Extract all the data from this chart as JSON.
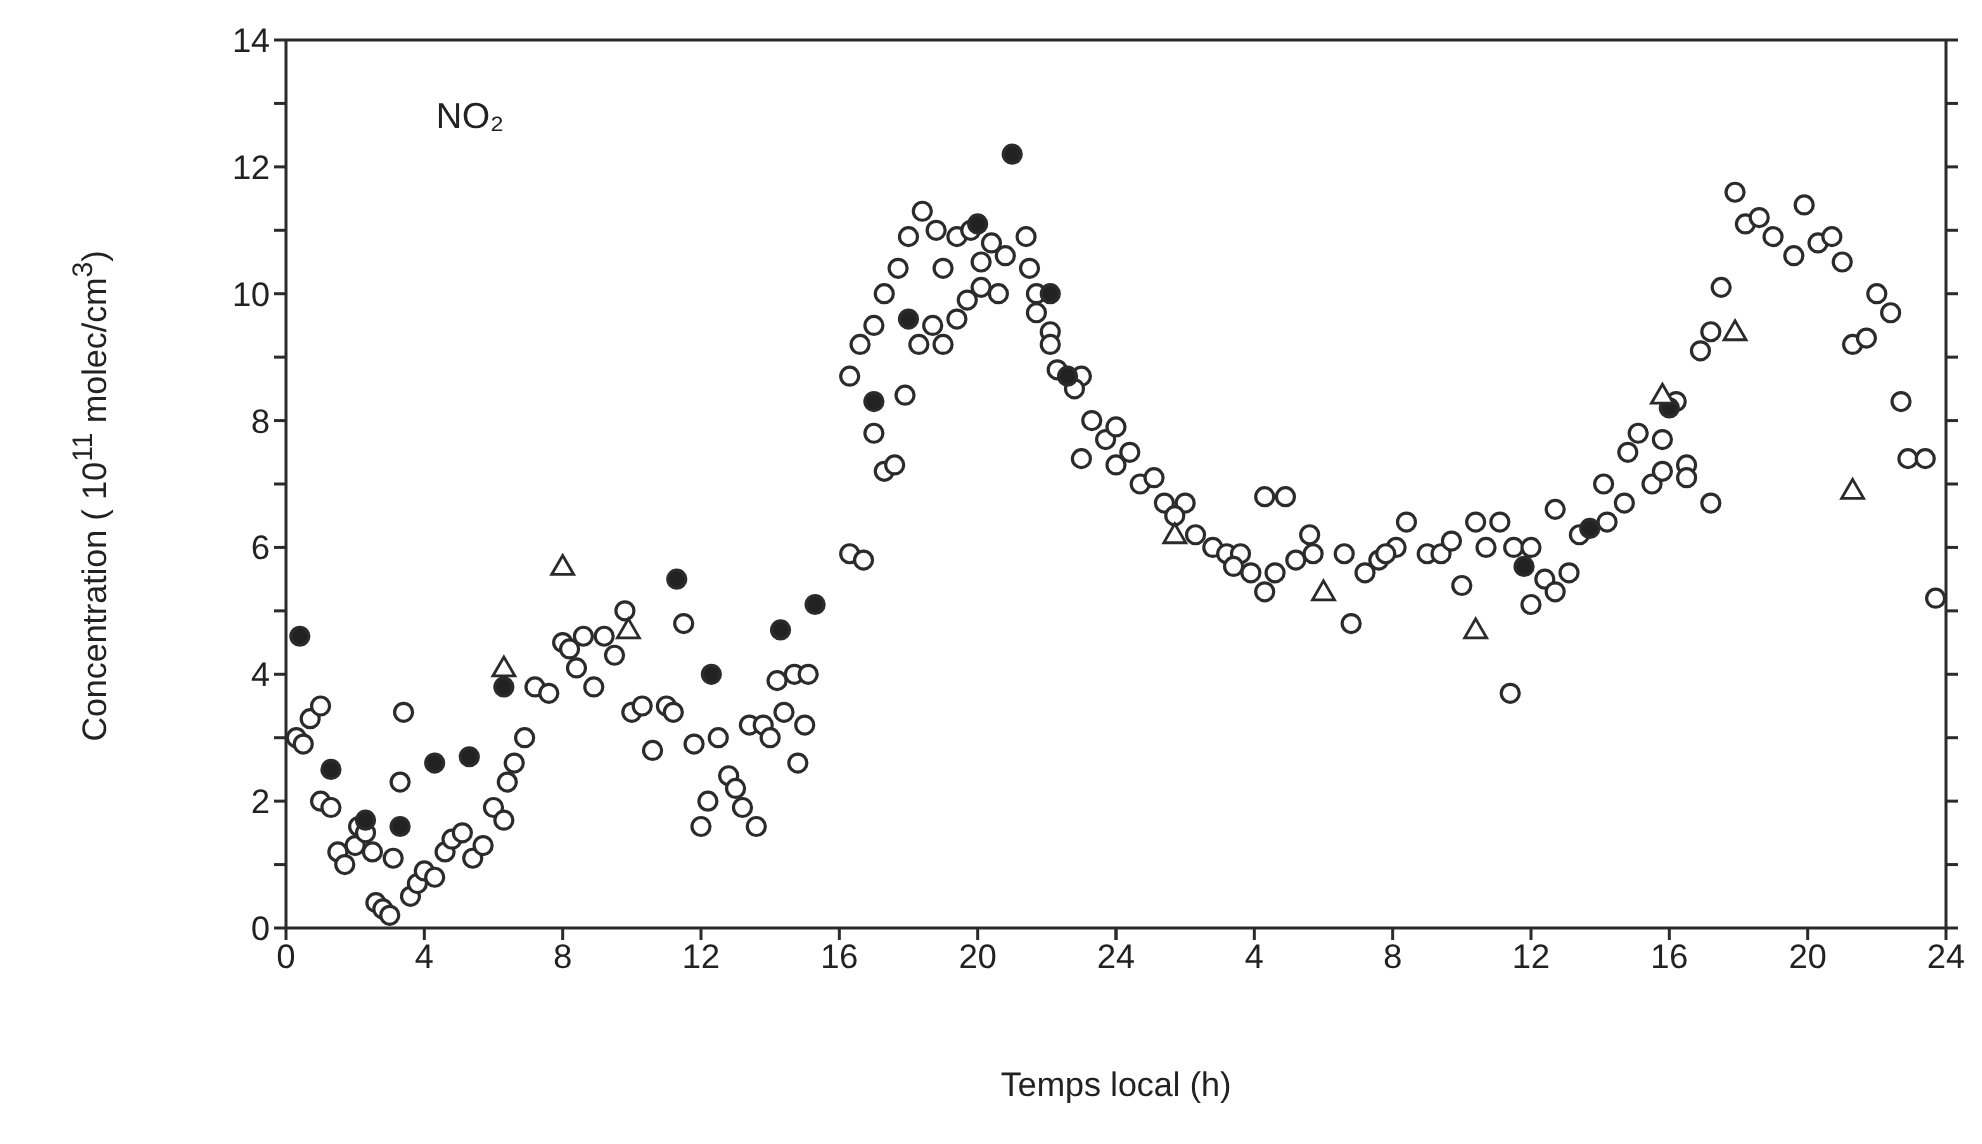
{
  "chart_data": [
    {
      "type": "scatter",
      "xlabel": "Temps local  (h)",
      "ylabel": "Concentration ( 10$^{11}$ molec/cm$^{3}$)",
      "annotations": [
        "NO₂"
      ],
      "xlim": [
        0,
        24
      ],
      "xticks": [
        0,
        4,
        8,
        12,
        16,
        20,
        24
      ],
      "ylim": [
        0,
        14
      ],
      "yticks": [
        0,
        {
          "value": 1,
          "label": null
        },
        2,
        {
          "value": 3,
          "label": null
        },
        4,
        {
          "value": 5,
          "label": null
        },
        6,
        {
          "value": 7,
          "label": null
        },
        8,
        {
          "value": 9,
          "label": null
        },
        10,
        {
          "value": 11,
          "label": null
        },
        12,
        {
          "value": 13,
          "label": null
        },
        14
      ],
      "series": [
        {
          "marker": "circle",
          "color": "#ffffff",
          "x": [
            0.3,
            0.5,
            0.7,
            1.0,
            1.0,
            1.3,
            1.5,
            1.7,
            2.0,
            2.1,
            2.3,
            2.5,
            2.6,
            2.8,
            3.0,
            3.1,
            3.3,
            3.4,
            3.6,
            3.8,
            4.0,
            4.3,
            4.6,
            4.8,
            5.1,
            5.4,
            5.7,
            6.0,
            6.3,
            6.4,
            6.6,
            6.9,
            7.2,
            7.6,
            8.0,
            8.2,
            8.4,
            8.6,
            8.9,
            9.2,
            9.5,
            9.8,
            10.0,
            10.3,
            10.6,
            11.0,
            11.2,
            11.5,
            11.8,
            12.0,
            12.2,
            12.5,
            12.8,
            13.0,
            13.2,
            13.4,
            13.6,
            13.8,
            14.0,
            14.2,
            14.4,
            14.7,
            14.8,
            15.0,
            15.1,
            16.3,
            16.7,
            16.3,
            16.6,
            17.0,
            17.3,
            17.7,
            18.0,
            18.4,
            18.8,
            19.0,
            19.4,
            19.8,
            20.1,
            20.4,
            20.8,
            21.4,
            21.5,
            17.0,
            17.3,
            17.6,
            17.9,
            18.3,
            19.0,
            18.7,
            19.4,
            19.7,
            20.1,
            20.6,
            21.7,
            21.7,
            22.1,
            22.1,
            22.3,
            23.0,
            22.8,
            23.0,
            23.3,
            23.7
          ],
          "values": [
            3.0,
            2.9,
            3.3,
            3.5,
            2.0,
            1.9,
            1.2,
            1.0,
            1.3,
            1.6,
            1.5,
            1.2,
            0.4,
            0.3,
            0.2,
            1.1,
            2.3,
            3.4,
            0.5,
            0.7,
            0.9,
            0.8,
            1.2,
            1.4,
            1.5,
            1.1,
            1.3,
            1.9,
            1.7,
            2.3,
            2.6,
            3.0,
            3.8,
            3.7,
            4.5,
            4.4,
            4.1,
            4.6,
            3.8,
            4.6,
            4.3,
            5.0,
            3.4,
            3.5,
            2.8,
            3.5,
            3.4,
            4.8,
            2.9,
            1.6,
            2.0,
            3.0,
            2.4,
            2.2,
            1.9,
            3.2,
            1.6,
            3.2,
            3.0,
            3.9,
            3.4,
            4.0,
            2.6,
            3.2,
            4.0,
            5.9,
            5.8,
            8.7,
            9.2,
            9.5,
            10.0,
            10.4,
            10.9,
            11.3,
            11.0,
            10.4,
            10.9,
            11.0,
            10.5,
            10.8,
            10.6,
            10.9,
            10.4,
            7.8,
            7.2,
            7.3,
            8.4,
            9.2,
            9.2,
            9.5,
            9.6,
            9.9,
            10.1,
            10.0,
            10.0,
            9.7,
            9.4,
            9.2,
            8.8,
            8.7,
            8.5,
            7.4,
            8.0,
            7.7
          ]
        },
        {
          "marker": "circle",
          "color": "#222222",
          "x": [
            0.4,
            1.3,
            2.3,
            3.3,
            4.3,
            5.3,
            6.3,
            11.3,
            12.3,
            14.3,
            15.3,
            17.0,
            18.0,
            20.0,
            21.0,
            22.1,
            22.6
          ],
          "values": [
            4.6,
            2.5,
            1.7,
            1.6,
            2.6,
            2.7,
            3.8,
            5.5,
            4.0,
            4.7,
            5.1,
            8.3,
            9.6,
            11.1,
            12.2,
            10.0,
            8.7
          ]
        },
        {
          "marker": "triangle",
          "color": "#ffffff",
          "x": [
            6.3,
            8.0,
            9.9
          ],
          "values": [
            4.1,
            5.7,
            4.7
          ]
        }
      ]
    },
    {
      "type": "scatter",
      "tick_labels": "x",
      "xlim": [
        0,
        24
      ],
      "xticks": [
        {
          "value": 0,
          "label": null
        },
        4,
        8,
        12,
        16,
        20,
        24
      ],
      "ylim": [
        0,
        14
      ],
      "yticks": [
        {
          "value": 0,
          "label": null
        },
        {
          "value": 1,
          "label": null
        },
        {
          "value": 2,
          "label": null
        },
        {
          "value": 3,
          "label": null
        },
        {
          "value": 4,
          "label": null
        },
        {
          "value": 5,
          "label": null
        },
        {
          "value": 6,
          "label": null
        },
        {
          "value": 7,
          "label": null
        },
        {
          "value": 8,
          "label": null
        },
        {
          "value": 9,
          "label": null
        },
        {
          "value": 10,
          "label": null
        },
        {
          "value": 11,
          "label": null
        },
        {
          "value": 12,
          "label": null
        },
        {
          "value": 13,
          "label": null
        },
        {
          "value": 14,
          "label": null
        }
      ],
      "series": [
        {
          "marker": "circle",
          "color": "#ffffff",
          "x": [
            0.0,
            0.0,
            0.4,
            0.7,
            1.1,
            1.4,
            2.0,
            1.7,
            2.3,
            2.8,
            3.2,
            3.6,
            3.4,
            3.9,
            4.3,
            4.3,
            4.9,
            4.6,
            5.2,
            5.6,
            5.7,
            6.6,
            6.8,
            7.2,
            7.6,
            8.1,
            7.8,
            8.4,
            9.0,
            9.4,
            9.7,
            10.0,
            10.4,
            10.7,
            11.1,
            11.5,
            11.4,
            12.0,
            12.0,
            12.4,
            12.7,
            12.7,
            13.1,
            13.4,
            14.1,
            14.2,
            14.7,
            14.8,
            15.1,
            15.5,
            15.8,
            15.8,
            16.2,
            16.5,
            16.5,
            17.2,
            16.9,
            17.2,
            17.5,
            17.9,
            18.2,
            18.6,
            19.0,
            19.6,
            19.9,
            20.3,
            20.7,
            21.0,
            21.3,
            21.7,
            22.0,
            22.4,
            22.7,
            22.9,
            23.4,
            23.7
          ],
          "values": [
            7.9,
            7.3,
            7.5,
            7.0,
            7.1,
            6.7,
            6.7,
            6.5,
            6.2,
            6.0,
            5.9,
            5.9,
            5.7,
            5.6,
            5.3,
            6.8,
            6.8,
            5.6,
            5.8,
            6.2,
            5.9,
            5.9,
            4.8,
            5.6,
            5.8,
            6.0,
            5.9,
            6.4,
            5.9,
            5.9,
            6.1,
            5.4,
            6.4,
            6.0,
            6.4,
            6.0,
            3.7,
            6.0,
            5.1,
            5.5,
            5.3,
            6.6,
            5.6,
            6.2,
            7.0,
            6.4,
            6.7,
            7.5,
            7.8,
            7.0,
            7.7,
            7.2,
            8.3,
            7.3,
            7.1,
            6.7,
            9.1,
            9.4,
            10.1,
            11.6,
            11.1,
            11.2,
            10.9,
            10.6,
            11.4,
            10.8,
            10.9,
            10.5,
            9.2,
            9.3,
            10.0,
            9.7,
            8.3,
            7.4,
            7.4,
            5.2
          ]
        },
        {
          "marker": "circle",
          "color": "#222222",
          "x": [
            11.8,
            13.7,
            16.0
          ],
          "values": [
            5.7,
            6.3,
            8.2
          ]
        },
        {
          "marker": "triangle",
          "color": "#ffffff",
          "x": [
            1.7,
            6.0,
            10.4,
            15.8,
            17.9,
            21.3
          ],
          "values": [
            6.2,
            5.3,
            4.7,
            8.4,
            9.4,
            6.9
          ]
        }
      ]
    }
  ]
}
